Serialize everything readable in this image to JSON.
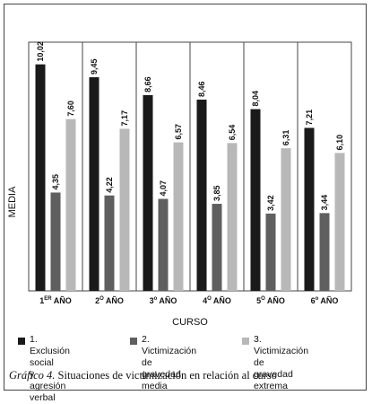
{
  "chart_data": {
    "type": "bar",
    "categories": [
      "1ER AÑO",
      "2º AÑO",
      "3º AÑO",
      "4º AÑO",
      "5º AÑO",
      "6º AÑO"
    ],
    "category_labels": [
      {
        "main": "1",
        "sup": "ER",
        "rest": " AÑO"
      },
      {
        "main": "2",
        "sup": "O",
        "rest": " AÑO"
      },
      {
        "main": "3",
        "sup": "o",
        "rest": " AÑO"
      },
      {
        "main": "4",
        "sup": "O",
        "rest": " AÑO"
      },
      {
        "main": "5",
        "sup": "O",
        "rest": " AÑO"
      },
      {
        "main": "6",
        "sup": "o",
        "rest": " AÑO"
      }
    ],
    "series": [
      {
        "name": "1. Exclusión social\ny agresión verbal",
        "color": "#1a1a1a",
        "values": [
          10.02,
          9.45,
          8.66,
          8.46,
          8.04,
          7.21
        ],
        "labels": [
          "10,02",
          "9,45",
          "8,66",
          "8,46",
          "8,04",
          "7,21"
        ]
      },
      {
        "name": "2. Victimización de\ngravedad media",
        "color": "#5f5f5f",
        "values": [
          4.35,
          4.22,
          4.07,
          3.85,
          3.42,
          3.44
        ],
        "labels": [
          "4,35",
          "4,22",
          "4,07",
          "3,85",
          "3,42",
          "3,44"
        ]
      },
      {
        "name": "3. Victimización de\ngravedad extrema",
        "color": "#b8b8b8",
        "values": [
          7.6,
          7.17,
          6.57,
          6.54,
          6.31,
          6.1
        ],
        "labels": [
          "7,60",
          "7,17",
          "6,57",
          "6,54",
          "6,31",
          "6,10"
        ]
      }
    ],
    "xlabel": "CURSO",
    "ylabel": "MEDIA",
    "ylim": [
      0,
      11
    ],
    "grid": "vertical category separators",
    "legend": "bottom"
  },
  "caption": {
    "figure_label": "Gráfico 4.",
    "text": " Situaciones de victimización en relación al curso"
  }
}
